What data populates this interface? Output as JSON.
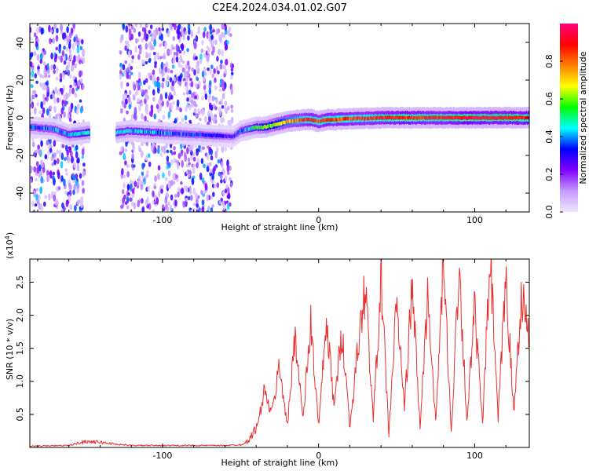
{
  "figure": {
    "title": "C2E4.2024.034.01.02.G07"
  },
  "chart_data": [
    {
      "type": "heatmap",
      "xlabel": "Height of straight line (km)",
      "ylabel": "Frequency (Hz)",
      "xlim": [
        -185,
        135
      ],
      "ylim": [
        -50,
        50
      ],
      "x_ticks": [
        -100,
        0,
        100
      ],
      "y_ticks": [
        -40,
        -20,
        0,
        20,
        40
      ],
      "colorbar": {
        "label": "Normalized spectral amplitude",
        "range": [
          0,
          1
        ],
        "ticks": [
          "0.0",
          "0.2",
          "0.4",
          "0.6",
          "0.8"
        ],
        "tick_values": [
          0.0,
          0.2,
          0.4,
          0.6,
          0.8
        ],
        "colors": [
          "#f0e6ff",
          "#c49bff",
          "#8000ff",
          "#0000ff",
          "#00ffff",
          "#00ff00",
          "#ffff00",
          "#ff8000",
          "#ff0000",
          "#ff0080"
        ]
      },
      "noise_bands": [
        [
          -185,
          -150
        ],
        [
          -127,
          -55
        ]
      ],
      "ridge": {
        "x": [
          -185,
          -170,
          -160,
          -150,
          -140,
          -130,
          -122,
          -55,
          -50,
          -45,
          -40,
          -35,
          -30,
          -25,
          -20,
          -15,
          -10,
          -5,
          0,
          5,
          10,
          20,
          40,
          60,
          80,
          100,
          120,
          135
        ],
        "frequency": [
          -5,
          -6,
          -9,
          -8,
          -7,
          -8,
          -7,
          -10,
          -7,
          -6,
          -5,
          -5,
          -4,
          -3,
          -2,
          -1.5,
          -1,
          -1,
          -2,
          -1,
          -1,
          -0.5,
          0,
          0,
          0,
          0,
          0,
          0
        ],
        "amplitude": [
          0.3,
          0.35,
          0.4,
          0.45,
          0.45,
          0.45,
          0.4,
          0.25,
          0.35,
          0.4,
          0.5,
          0.55,
          0.6,
          0.65,
          0.7,
          0.75,
          0.8,
          0.85,
          0.8,
          0.85,
          0.8,
          0.8,
          0.85,
          0.85,
          0.85,
          0.9,
          0.9,
          0.85
        ]
      }
    },
    {
      "type": "line",
      "xlabel": "Height of straight line (km)",
      "ylabel": "SNR (10 * v/v)",
      "y_multiplier": "(x10",
      "y_multiplier_exp": "4",
      "y_multiplier_close": ")",
      "xlim": [
        -185,
        135
      ],
      "ylim": [
        0,
        2.85
      ],
      "x_ticks": [
        -100,
        0,
        100
      ],
      "y_ticks": [
        0.5,
        1.0,
        1.5,
        2.0,
        2.5
      ],
      "y_tick_labels": [
        "0.5",
        "1.0",
        "1.5",
        "2.0",
        "2.5"
      ],
      "line_color": "#e83030",
      "x": [
        -185,
        -160,
        -150,
        -140,
        -130,
        -120,
        -100,
        -80,
        -60,
        -50,
        -45,
        -40,
        -38,
        -35,
        -30,
        -25,
        -20,
        -15,
        -10,
        -5,
        0,
        5,
        10,
        15,
        20,
        25,
        30,
        35,
        40,
        45,
        50,
        55,
        60,
        65,
        70,
        75,
        80,
        85,
        90,
        95,
        100,
        105,
        110,
        115,
        120,
        125,
        130,
        135
      ],
      "y": [
        0.02,
        0.03,
        0.09,
        0.08,
        0.05,
        0.03,
        0.03,
        0.03,
        0.03,
        0.04,
        0.1,
        0.3,
        0.45,
        0.85,
        0.5,
        1.25,
        0.3,
        1.75,
        0.4,
        1.9,
        0.3,
        1.9,
        0.6,
        1.8,
        0.3,
        1.45,
        2.45,
        0.4,
        2.55,
        0.2,
        2.2,
        0.6,
        2.45,
        0.3,
        2.35,
        0.35,
        2.8,
        0.2,
        2.8,
        0.4,
        2.1,
        0.35,
        2.85,
        0.4,
        2.6,
        0.5,
        2.35,
        1.6
      ],
      "noise_seed": 7
    }
  ]
}
